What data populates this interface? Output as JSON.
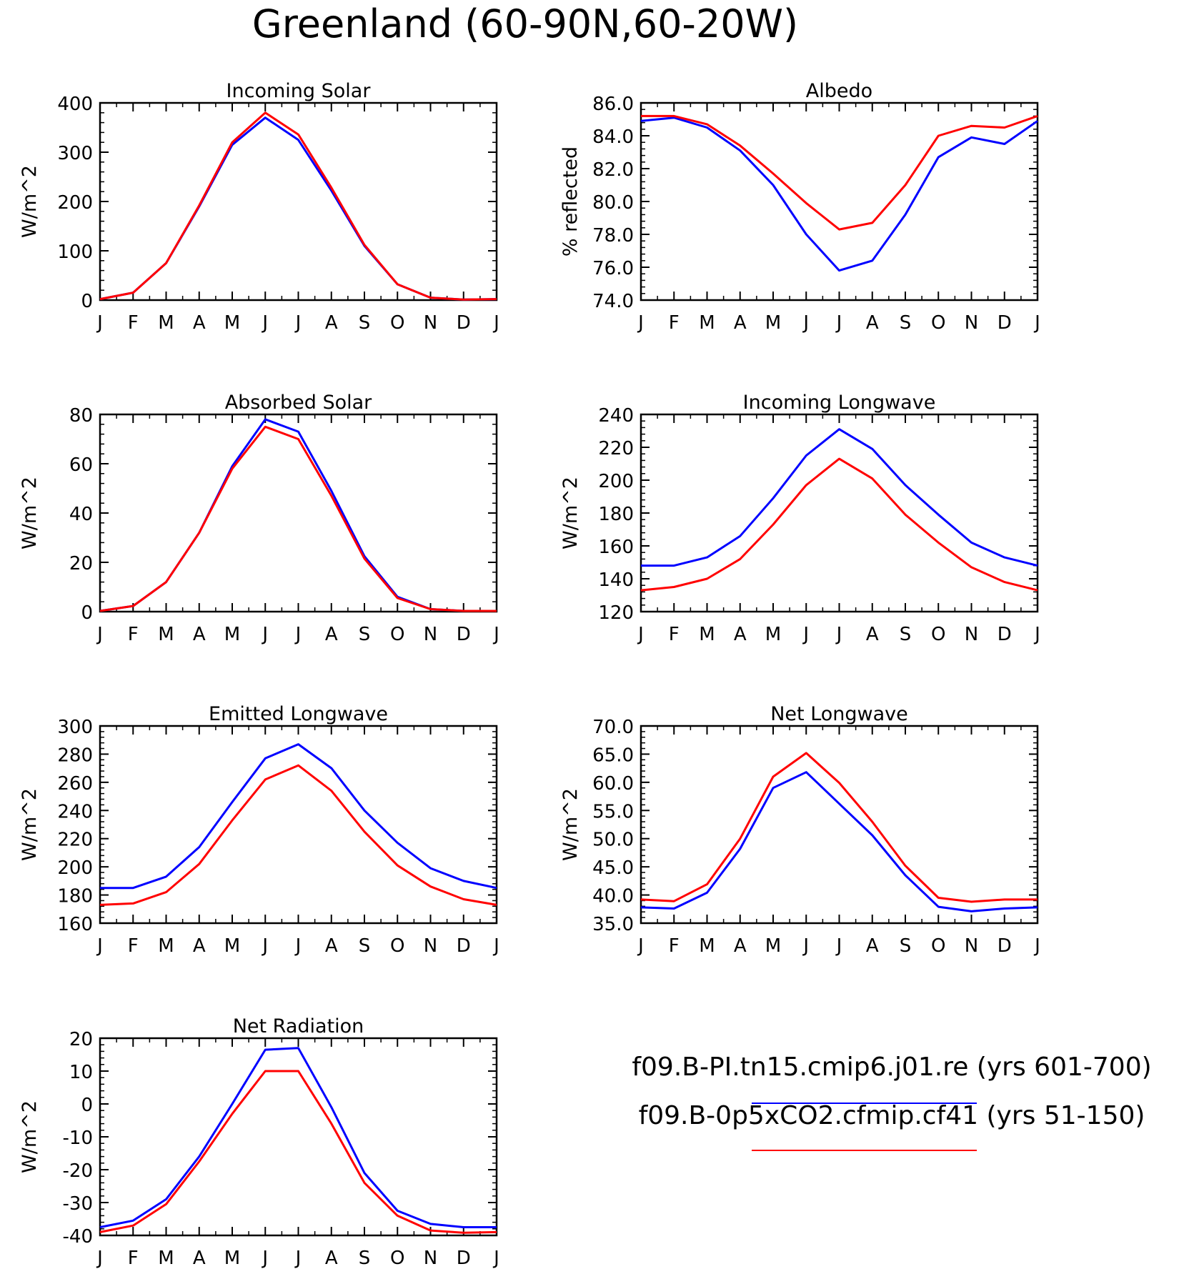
{
  "title": "Greenland (60-90N,60-20W)",
  "months": [
    "J",
    "F",
    "M",
    "A",
    "M",
    "J",
    "J",
    "A",
    "S",
    "O",
    "N",
    "D",
    "J"
  ],
  "colors": {
    "series_1": "#0000ff",
    "series_2": "#ff0000"
  },
  "legend": [
    {
      "label": "f09.B-PI.tn15.cmip6.j01.re (yrs 601-700)",
      "color": "#0000ff"
    },
    {
      "label": "f09.B-0p5xCO2.cfmip.cf41 (yrs 51-150)",
      "color": "#ff0000"
    }
  ],
  "chart_data": [
    {
      "type": "line",
      "title": "Incoming Solar",
      "ylabel": "W/m^2",
      "ylim": [
        0,
        400
      ],
      "yticks": [
        "0",
        "100",
        "200",
        "300",
        "400"
      ],
      "x": [
        "J",
        "F",
        "M",
        "A",
        "M",
        "J",
        "J",
        "A",
        "S",
        "O",
        "N",
        "D",
        "J"
      ],
      "series": [
        {
          "name": "f09.B-PI.tn15.cmip6.j01.re (yrs 601-700)",
          "color": "#0000ff",
          "values": [
            2,
            15,
            75,
            190,
            315,
            370,
            325,
            222,
            110,
            32,
            5,
            1,
            2
          ]
        },
        {
          "name": "f09.B-0p5xCO2.cfmip.cf41 (yrs 51-150)",
          "color": "#ff0000",
          "values": [
            2,
            15,
            75,
            192,
            320,
            380,
            336,
            228,
            112,
            32,
            5,
            1,
            2
          ]
        }
      ]
    },
    {
      "type": "line",
      "title": "Albedo",
      "ylabel": "% reflected",
      "ylim": [
        74.0,
        86.0
      ],
      "yticks": [
        "74.0",
        "76.0",
        "78.0",
        "80.0",
        "82.0",
        "84.0",
        "86.0"
      ],
      "x": [
        "J",
        "F",
        "M",
        "A",
        "M",
        "J",
        "J",
        "A",
        "S",
        "O",
        "N",
        "D",
        "J"
      ],
      "series": [
        {
          "name": "f09.B-PI.tn15.cmip6.j01.re (yrs 601-700)",
          "color": "#0000ff",
          "values": [
            84.9,
            85.1,
            84.5,
            83.1,
            81.0,
            78.0,
            75.8,
            76.4,
            79.2,
            82.7,
            83.9,
            83.5,
            84.9
          ]
        },
        {
          "name": "f09.B-0p5xCO2.cfmip.cf41 (yrs 51-150)",
          "color": "#ff0000",
          "values": [
            85.2,
            85.2,
            84.7,
            83.4,
            81.7,
            79.9,
            78.3,
            78.7,
            81.0,
            84.0,
            84.6,
            84.5,
            85.2
          ]
        }
      ]
    },
    {
      "type": "line",
      "title": "Absorbed Solar",
      "ylabel": "W/m^2",
      "ylim": [
        0,
        80
      ],
      "yticks": [
        "0",
        "20",
        "40",
        "60",
        "80"
      ],
      "x": [
        "J",
        "F",
        "M",
        "A",
        "M",
        "J",
        "J",
        "A",
        "S",
        "O",
        "N",
        "D",
        "J"
      ],
      "series": [
        {
          "name": "f09.B-PI.tn15.cmip6.j01.re (yrs 601-700)",
          "color": "#0000ff",
          "values": [
            0.3,
            2.3,
            12,
            32,
            59,
            78,
            73,
            49,
            22.5,
            6,
            1,
            0.3,
            0.3
          ]
        },
        {
          "name": "f09.B-0p5xCO2.cfmip.cf41 (yrs 51-150)",
          "color": "#ff0000",
          "values": [
            0.3,
            2.3,
            12,
            32,
            58,
            75,
            70,
            47,
            21.5,
            5.5,
            1,
            0.3,
            0.3
          ]
        }
      ]
    },
    {
      "type": "line",
      "title": "Incoming Longwave",
      "ylabel": "W/m^2",
      "ylim": [
        120,
        240
      ],
      "yticks": [
        "120",
        "140",
        "160",
        "180",
        "200",
        "220",
        "240"
      ],
      "x": [
        "J",
        "F",
        "M",
        "A",
        "M",
        "J",
        "J",
        "A",
        "S",
        "O",
        "N",
        "D",
        "J"
      ],
      "series": [
        {
          "name": "f09.B-PI.tn15.cmip6.j01.re (yrs 601-700)",
          "color": "#0000ff",
          "values": [
            148,
            148,
            153,
            166,
            189,
            215,
            231,
            219,
            197,
            179,
            162,
            153,
            148
          ]
        },
        {
          "name": "f09.B-0p5xCO2.cfmip.cf41 (yrs 51-150)",
          "color": "#ff0000",
          "values": [
            133,
            135,
            140,
            152,
            173,
            197,
            213,
            201,
            179,
            162,
            147,
            138,
            133
          ]
        }
      ]
    },
    {
      "type": "line",
      "title": "Emitted Longwave",
      "ylabel": "W/m^2",
      "ylim": [
        160,
        300
      ],
      "yticks": [
        "160",
        "180",
        "200",
        "220",
        "240",
        "260",
        "280",
        "300"
      ],
      "x": [
        "J",
        "F",
        "M",
        "A",
        "M",
        "J",
        "J",
        "A",
        "S",
        "O",
        "N",
        "D",
        "J"
      ],
      "series": [
        {
          "name": "f09.B-PI.tn15.cmip6.j01.re (yrs 601-700)",
          "color": "#0000ff",
          "values": [
            185,
            185,
            193,
            214,
            246,
            277,
            287,
            270,
            240,
            217,
            199,
            190,
            185
          ]
        },
        {
          "name": "f09.B-0p5xCO2.cfmip.cf41 (yrs 51-150)",
          "color": "#ff0000",
          "values": [
            173,
            174,
            182,
            202,
            233,
            262,
            272,
            254,
            225,
            201,
            186,
            177,
            173
          ]
        }
      ]
    },
    {
      "type": "line",
      "title": "Net Longwave",
      "ylabel": "W/m^2",
      "ylim": [
        35.0,
        70.0
      ],
      "yticks": [
        "35.0",
        "40.0",
        "45.0",
        "50.0",
        "55.0",
        "60.0",
        "65.0",
        "70.0"
      ],
      "x": [
        "J",
        "F",
        "M",
        "A",
        "M",
        "J",
        "J",
        "A",
        "S",
        "O",
        "N",
        "D",
        "J"
      ],
      "series": [
        {
          "name": "f09.B-PI.tn15.cmip6.j01.re (yrs 601-700)",
          "color": "#0000ff",
          "values": [
            37.8,
            37.6,
            40.4,
            48.2,
            59.0,
            61.8,
            56.2,
            50.6,
            43.5,
            37.9,
            37.1,
            37.6,
            37.8
          ]
        },
        {
          "name": "f09.B-0p5xCO2.cfmip.cf41 (yrs 51-150)",
          "color": "#ff0000",
          "values": [
            39.2,
            38.9,
            41.9,
            50.0,
            61.0,
            65.2,
            59.9,
            53.0,
            45.2,
            39.5,
            38.8,
            39.2,
            39.2
          ]
        }
      ]
    },
    {
      "type": "line",
      "title": "Net Radiation",
      "ylabel": "W/m^2",
      "ylim": [
        -40,
        20
      ],
      "yticks": [
        "-40",
        "-30",
        "-20",
        "-10",
        "0",
        "10",
        "20"
      ],
      "x": [
        "J",
        "F",
        "M",
        "A",
        "M",
        "J",
        "J",
        "A",
        "S",
        "O",
        "N",
        "D",
        "J"
      ],
      "series": [
        {
          "name": "f09.B-PI.tn15.cmip6.j01.re (yrs 601-700)",
          "color": "#0000ff",
          "values": [
            -37.5,
            -35.5,
            -29,
            -16,
            0,
            16.5,
            17,
            -1,
            -21,
            -32.5,
            -36.5,
            -37.5,
            -37.5
          ]
        },
        {
          "name": "f09.B-0p5xCO2.cfmip.cf41 (yrs 51-150)",
          "color": "#ff0000",
          "values": [
            -39,
            -37,
            -30.5,
            -17.5,
            -3,
            10,
            10,
            -6,
            -24,
            -34,
            -38.5,
            -39.2,
            -39
          ]
        }
      ]
    }
  ]
}
